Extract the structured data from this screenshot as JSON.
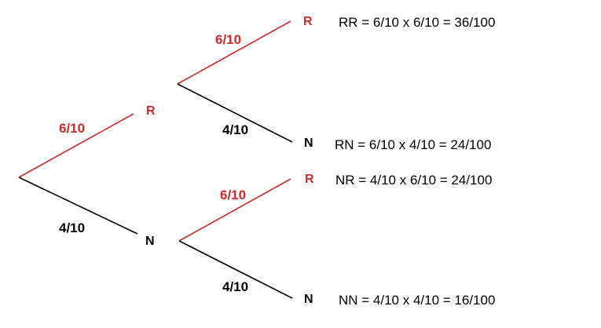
{
  "colors": {
    "red": "#cc2a2a",
    "black": "#000000"
  },
  "tree": {
    "first": {
      "upper": {
        "probability": "6/10",
        "outcome": "R"
      },
      "lower": {
        "probability": "4/10",
        "outcome": "N"
      }
    },
    "second": {
      "after_r": {
        "upper": {
          "probability": "6/10",
          "outcome": "R"
        },
        "lower": {
          "probability": "4/10",
          "outcome": "N"
        }
      },
      "after_n": {
        "upper": {
          "probability": "6/10",
          "outcome": "R"
        },
        "lower": {
          "probability": "4/10",
          "outcome": "N"
        }
      }
    }
  },
  "results": {
    "rr": "RR = 6/10 x 6/10 = 36/100",
    "rn": "RN = 6/10 x 4/10 = 24/100",
    "nr": "NR = 4/10 x 6/10 = 24/100",
    "nn": "NN = 4/10 x 4/10 = 16/100"
  }
}
